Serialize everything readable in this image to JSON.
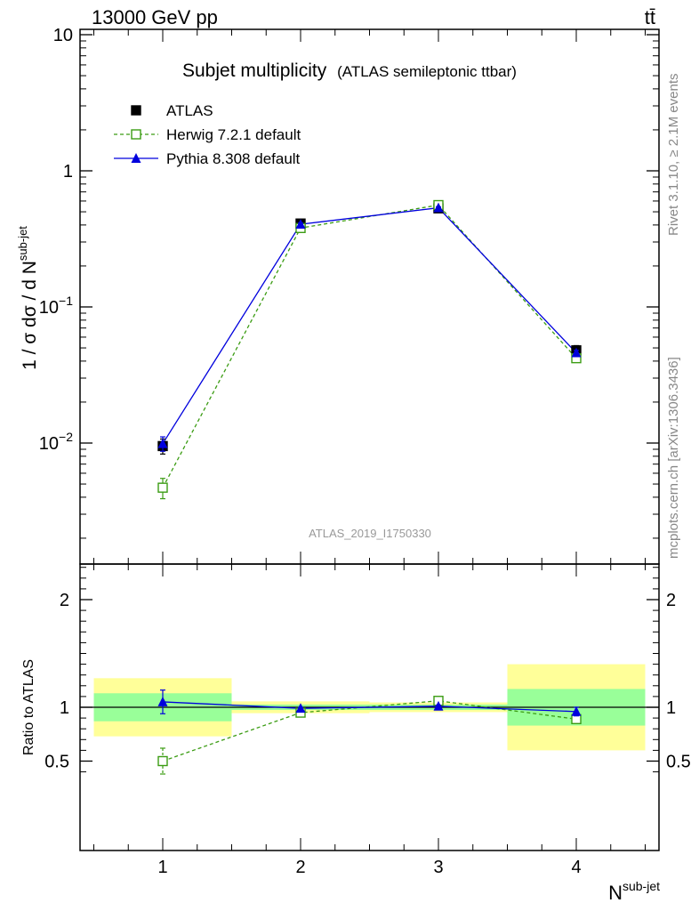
{
  "header": {
    "left": "13000 GeV pp",
    "right": "tt̄"
  },
  "side_labels": {
    "top": "Rivet 3.1.10, ≥ 2.1M events",
    "bottom": "mcplots.cern.ch [arXiv:1306.3436]"
  },
  "analysis_ref": "ATLAS_2019_I1750330",
  "colors": {
    "atlas": "#000000",
    "herwig": "#3b9c13",
    "pythia": "#0000dd",
    "band_inner": "#99ff99",
    "band_outer": "#ffff99"
  },
  "chart_data": [
    {
      "type": "scatter",
      "panel": "main",
      "title": "Subjet multiplicity",
      "subtitle": "(ATLAS semileptonic ttbar)",
      "ylabel": "1 / σ dσ / d N^sub-jet",
      "yscale": "log",
      "ylim": [
        0.0015,
        10
      ],
      "xlim": [
        0.4,
        4.6
      ],
      "y_ticks": [
        "10^-2",
        "10^-1",
        "1",
        "10"
      ],
      "legend_placement": "top-left",
      "series": [
        {
          "name": "ATLAS",
          "marker": "filled-square",
          "x": [
            1,
            2,
            3,
            4
          ],
          "y": [
            0.0095,
            0.41,
            0.53,
            0.048
          ],
          "yerr": [
            0.0012,
            0.02,
            0.02,
            0.004
          ]
        },
        {
          "name": "Herwig 7.2.1 default",
          "marker": "open-square",
          "line": "dashed",
          "x": [
            1,
            2,
            3,
            4
          ],
          "y": [
            0.0047,
            0.38,
            0.56,
            0.042
          ],
          "yerr": [
            0.0008,
            0.01,
            0.01,
            0.002
          ]
        },
        {
          "name": "Pythia 8.308 default",
          "marker": "filled-triangle",
          "line": "solid",
          "x": [
            1,
            2,
            3,
            4
          ],
          "y": [
            0.0099,
            0.405,
            0.535,
            0.046
          ],
          "yerr": [
            0.0012,
            0.008,
            0.008,
            0.002
          ]
        }
      ]
    },
    {
      "type": "scatter",
      "panel": "ratio",
      "ylabel": "Ratio to ATLAS",
      "xlabel": "N^sub-jet",
      "ylim": [
        0.35,
        2.35
      ],
      "xlim": [
        0.4,
        4.6
      ],
      "x_ticks": [
        "1",
        "2",
        "3",
        "4"
      ],
      "y_ticks": [
        "0.5",
        "1",
        "2"
      ],
      "bands": [
        {
          "x_low": 0.5,
          "x_high": 1.5,
          "inner": [
            0.87,
            1.13
          ],
          "outer": [
            0.73,
            1.27
          ]
        },
        {
          "x_low": 1.5,
          "x_high": 2.5,
          "inner": [
            0.975,
            1.025
          ],
          "outer": [
            0.945,
            1.055
          ]
        },
        {
          "x_low": 2.5,
          "x_high": 3.5,
          "inner": [
            0.975,
            1.025
          ],
          "outer": [
            0.955,
            1.045
          ]
        },
        {
          "x_low": 3.5,
          "x_high": 4.5,
          "inner": [
            0.83,
            1.17
          ],
          "outer": [
            0.6,
            1.4
          ]
        }
      ],
      "series": [
        {
          "name": "Herwig 7.2.1 default",
          "x": [
            1,
            2,
            3,
            4
          ],
          "y": [
            0.5,
            0.95,
            1.06,
            0.89
          ],
          "yerr": [
            0.12,
            0.01,
            0.01,
            0.04
          ]
        },
        {
          "name": "Pythia 8.308 default",
          "x": [
            1,
            2,
            3,
            4
          ],
          "y": [
            1.05,
            0.99,
            1.01,
            0.96
          ],
          "yerr": [
            0.11,
            0.01,
            0.01,
            0.04
          ]
        }
      ]
    }
  ]
}
